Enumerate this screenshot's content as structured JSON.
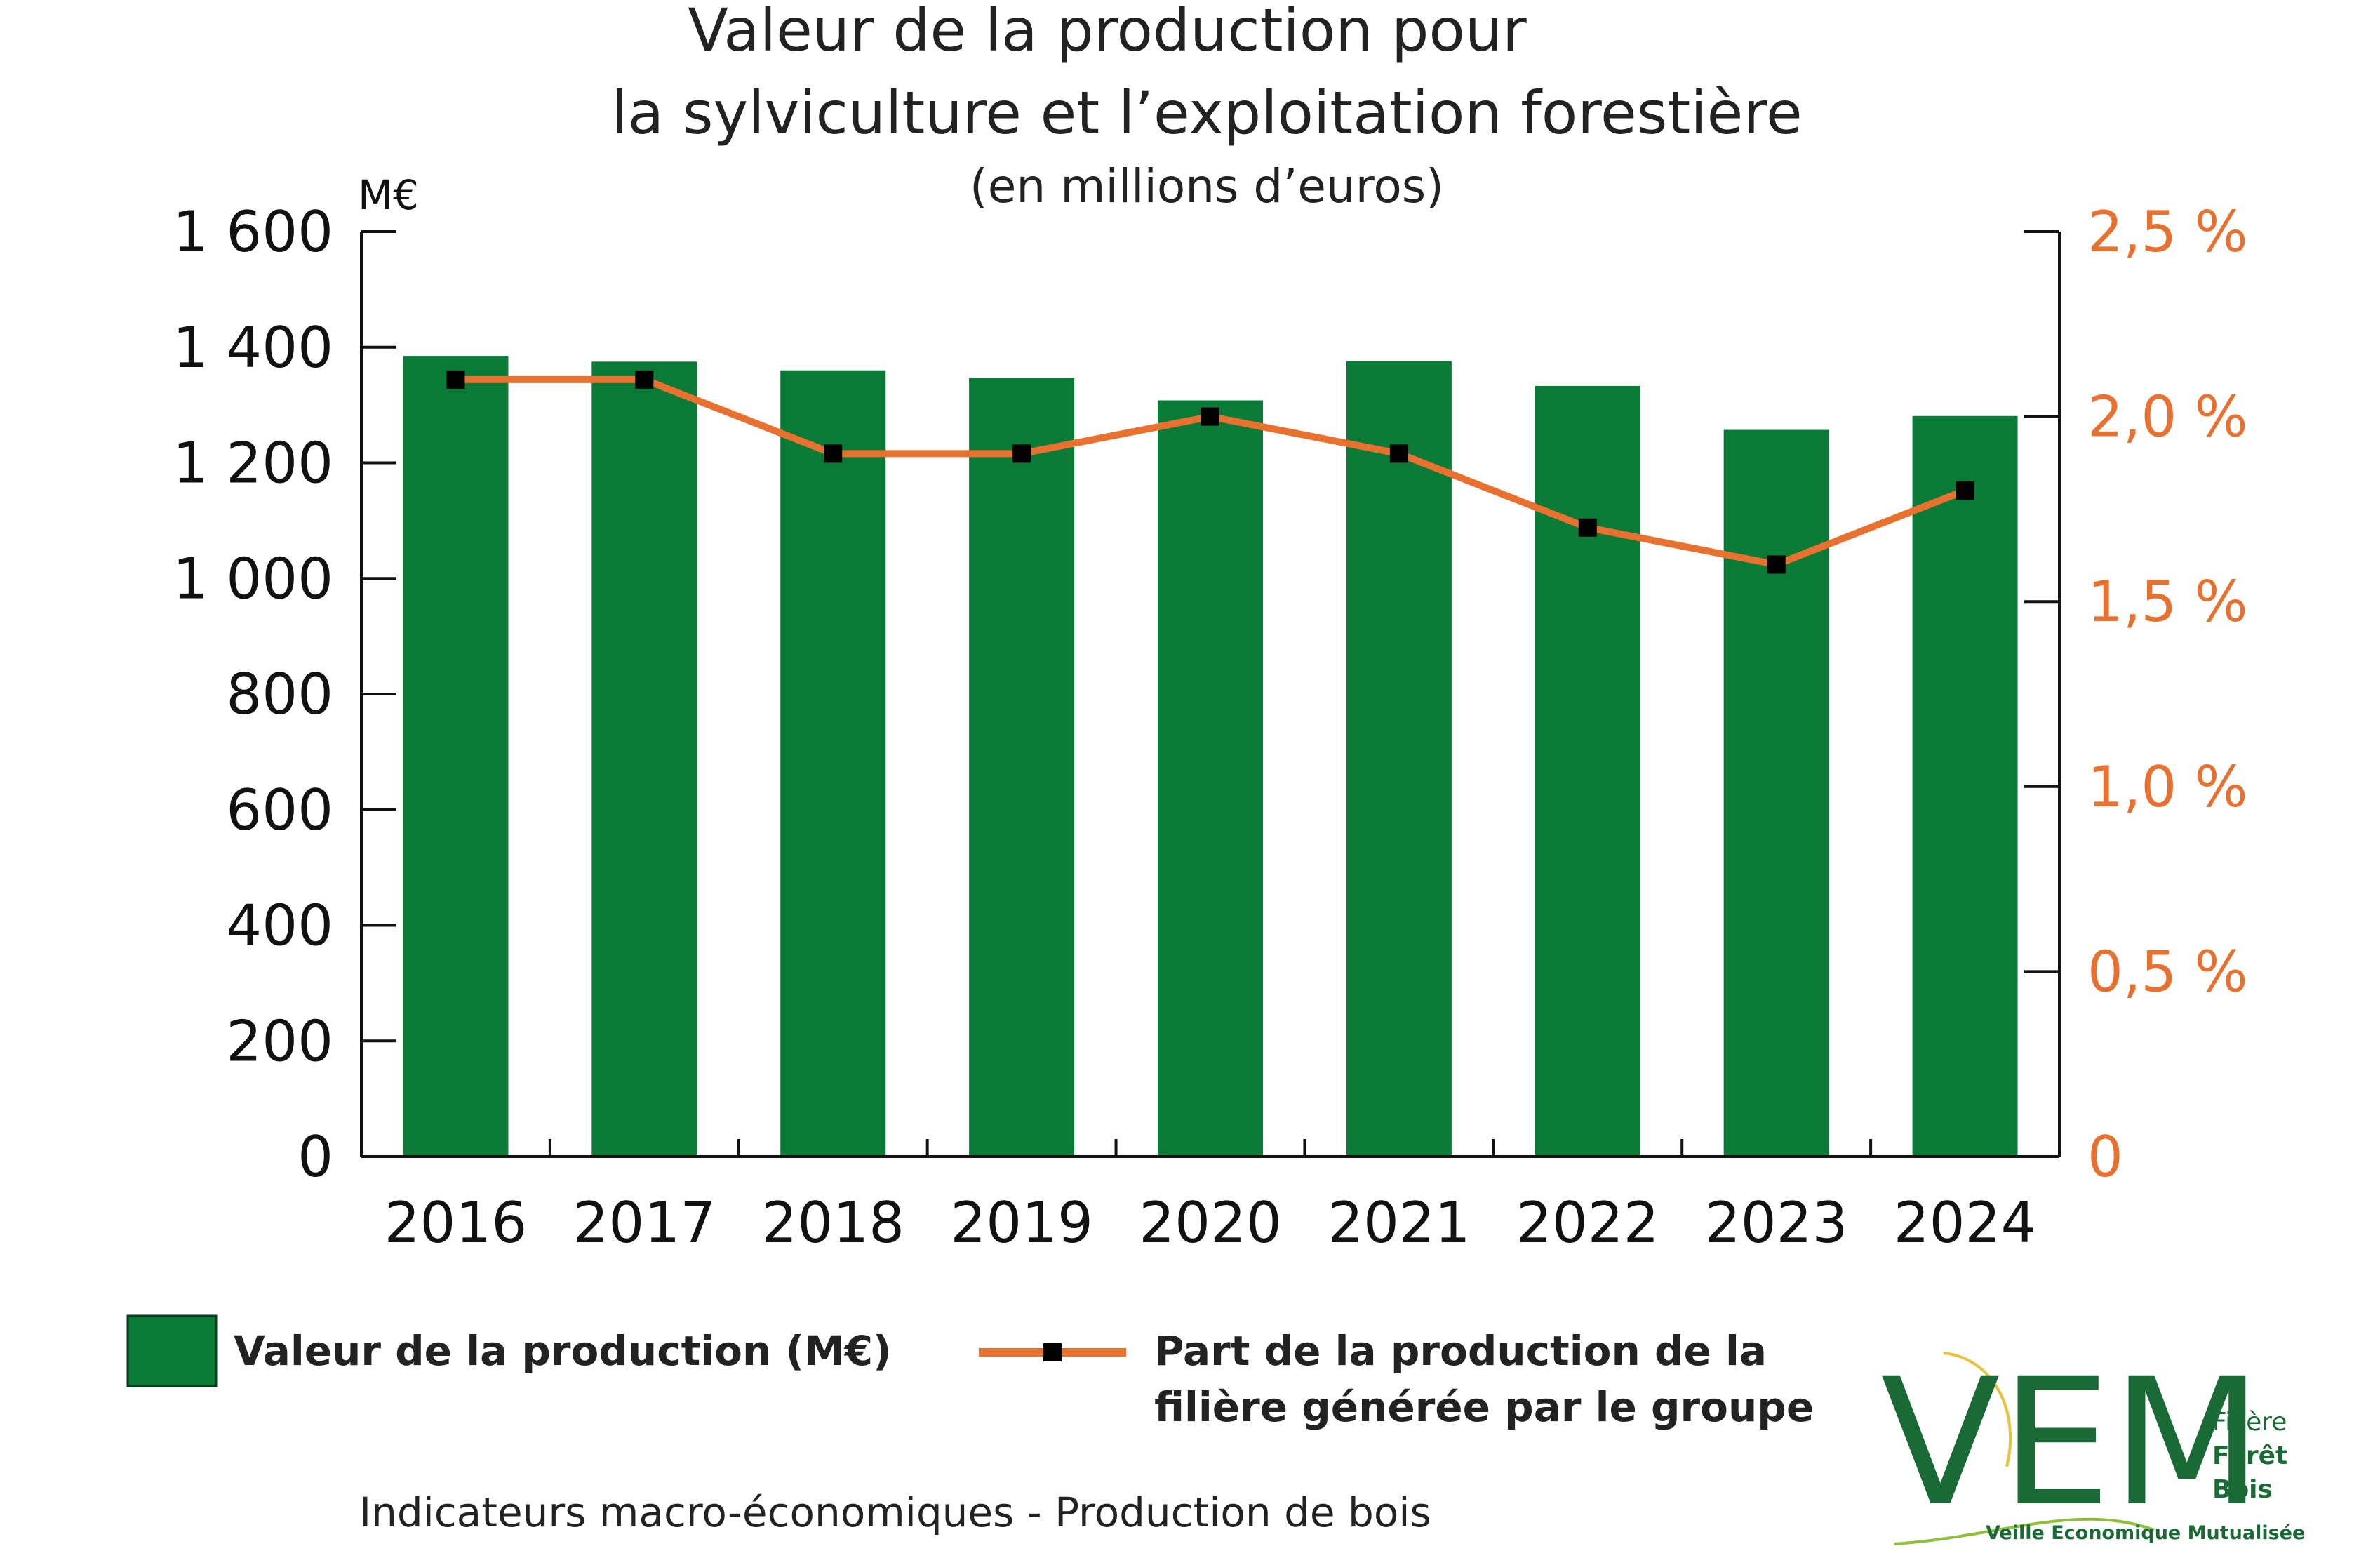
{
  "chart_data": {
    "type": "bar",
    "title_lines": [
      "Valeur de la production pour",
      "la sylviculture et l’exploitation forestière"
    ],
    "subtitle": "(en millions d’euros)",
    "left_unit": "M€",
    "categories": [
      "2016",
      "2017",
      "2018",
      "2019",
      "2020",
      "2021",
      "2022",
      "2023",
      "2024"
    ],
    "series": [
      {
        "name": "Valeur de la production (M€)",
        "type": "bar",
        "axis": "left",
        "color": "#0a7a37",
        "values": [
          1385,
          1375,
          1360,
          1347,
          1308,
          1376,
          1333,
          1257,
          1281
        ]
      },
      {
        "name_lines": [
          "Part de la production de la",
          "filière générée par le groupe"
        ],
        "type": "line",
        "axis": "right",
        "color": "#e8712f",
        "marker_color": "#000000",
        "values": [
          2.1,
          2.1,
          1.9,
          1.9,
          2.0,
          1.9,
          1.7,
          1.6,
          1.8
        ]
      }
    ],
    "y_left": {
      "min": 0,
      "max": 1600,
      "ticks": [
        0,
        200,
        400,
        600,
        800,
        1000,
        1200,
        1400,
        1600
      ],
      "tick_labels": [
        "0",
        "200",
        "400",
        "600",
        "800",
        "1 000",
        "1 200",
        "1 400",
        "1 600"
      ]
    },
    "y_right": {
      "min": 0,
      "max": 2.5,
      "ticks": [
        0,
        0.5,
        1.0,
        1.5,
        2.0,
        2.5
      ],
      "tick_labels": [
        "0",
        "0,5 %",
        "1,0 %",
        "1,5 %",
        "2,0 %",
        "2,5 %"
      ],
      "color": "#e8712f"
    },
    "grid": false,
    "legend_position": "bottom"
  },
  "footer_text": "Indicateurs macro-économiques - Production de bois",
  "logo": {
    "letters": "VEM",
    "line1": "Filière",
    "line2": "Forêt",
    "line3": "Bois",
    "tagline": "Veille Economique Mutualisée",
    "color": "#1a6a35",
    "arc_color": "#e9c23a"
  }
}
